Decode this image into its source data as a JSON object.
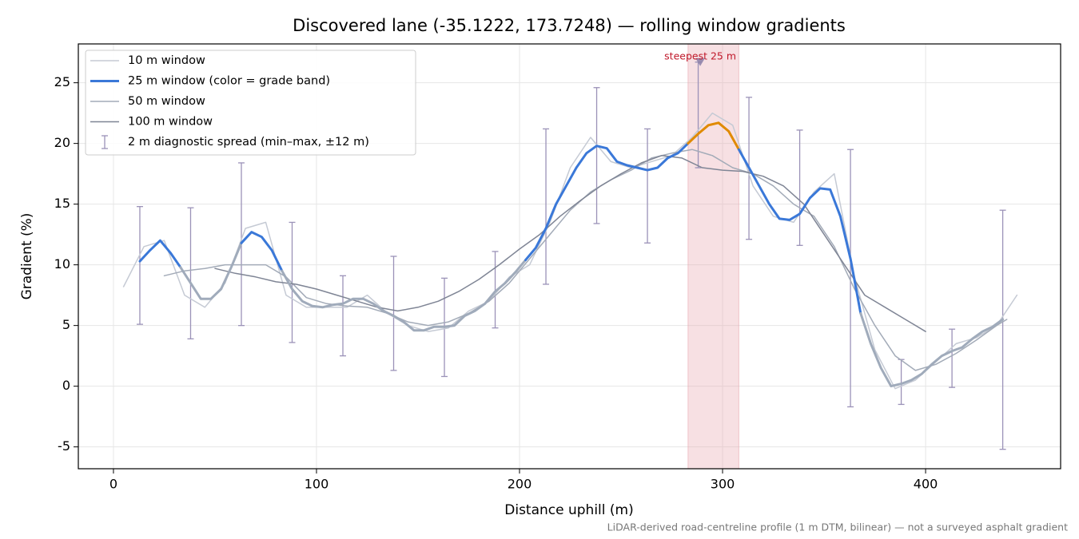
{
  "chart_data": {
    "type": "line",
    "title": "Discovered lane (-35.1222, 173.7248) — rolling window gradients",
    "xlabel": "Distance uphill (m)",
    "ylabel": "Gradient (%)",
    "note": "LiDAR-derived road-centreline profile (1 m DTM, bilinear) — not a surveyed asphalt gradient",
    "xlim": [
      -17.3,
      466.5
    ],
    "ylim": [
      -6.8,
      28.2
    ],
    "xticks": [
      0,
      100,
      200,
      300,
      400
    ],
    "yticks": [
      -5,
      0,
      5,
      10,
      15,
      20,
      25
    ],
    "grid": true,
    "legend": "upper left",
    "series": [
      {
        "name": "10 m window",
        "color": "#c5cad4",
        "width": 1.5,
        "x": [
          5,
          15,
          25,
          35,
          45,
          55,
          65,
          75,
          85,
          95,
          105,
          115,
          125,
          135,
          145,
          155,
          165,
          175,
          185,
          195,
          205,
          215,
          225,
          235,
          245,
          255,
          265,
          275,
          285,
          295,
          305,
          315,
          325,
          335,
          345,
          355,
          365,
          375,
          385,
          395,
          405,
          415,
          425,
          435,
          445
        ],
        "values": [
          8.2,
          11.5,
          12.0,
          7.5,
          6.5,
          8.5,
          13.0,
          13.5,
          7.5,
          6.5,
          6.5,
          6.5,
          7.5,
          6.0,
          5.0,
          4.5,
          4.8,
          6.2,
          7.0,
          9.0,
          10.0,
          13.5,
          18.0,
          20.5,
          18.5,
          18.0,
          18.5,
          19.0,
          20.5,
          22.5,
          21.5,
          16.5,
          14.0,
          13.5,
          16.0,
          17.5,
          9.0,
          3.0,
          -0.2,
          0.5,
          2.0,
          3.5,
          4.0,
          5.0,
          7.5
        ]
      },
      {
        "name": "25 m window (color = grade band)",
        "color": "#3a78d8",
        "width": 3,
        "band_edges": [
          10,
          20
        ],
        "band_colors": [
          "#a0abbb",
          "#3a78d8",
          "#e08a00"
        ],
        "x": [
          13,
          18,
          23,
          28,
          33,
          38,
          43,
          48,
          53,
          58,
          63,
          68,
          73,
          78,
          83,
          88,
          93,
          98,
          103,
          108,
          113,
          118,
          123,
          128,
          133,
          138,
          143,
          148,
          153,
          158,
          163,
          168,
          173,
          178,
          183,
          188,
          193,
          198,
          203,
          208,
          213,
          218,
          223,
          228,
          233,
          238,
          243,
          248,
          253,
          258,
          263,
          268,
          273,
          278,
          283,
          288,
          293,
          298,
          303,
          308,
          313,
          318,
          323,
          328,
          333,
          338,
          343,
          348,
          353,
          358,
          363,
          368,
          373,
          378,
          383,
          388,
          393,
          398,
          403,
          408,
          413,
          418,
          423,
          428,
          433,
          438
        ],
        "values": [
          10.3,
          11.2,
          12.0,
          11.0,
          9.8,
          8.5,
          7.2,
          7.2,
          8.0,
          9.8,
          11.8,
          12.7,
          12.3,
          11.2,
          9.5,
          8.0,
          7.0,
          6.6,
          6.5,
          6.7,
          6.8,
          7.2,
          7.2,
          6.8,
          6.2,
          5.8,
          5.3,
          4.6,
          4.6,
          4.9,
          4.9,
          5.0,
          5.8,
          6.2,
          6.8,
          7.8,
          8.5,
          9.4,
          10.4,
          11.4,
          13.0,
          15.0,
          16.5,
          18.0,
          19.2,
          19.8,
          19.6,
          18.5,
          18.2,
          18.0,
          17.8,
          18.0,
          18.8,
          19.2,
          20.0,
          20.8,
          21.5,
          21.7,
          21.0,
          19.5,
          18.0,
          16.5,
          15.0,
          13.8,
          13.7,
          14.2,
          15.5,
          16.3,
          16.2,
          14.0,
          10.5,
          6.0,
          3.5,
          1.5,
          0.0,
          0.2,
          0.5,
          1.0,
          1.8,
          2.5,
          2.9,
          3.2,
          3.9,
          4.5,
          4.9,
          5.5
        ]
      },
      {
        "name": "50 m window",
        "color": "#a3abb8",
        "width": 1.5,
        "x": [
          25,
          35,
          45,
          55,
          65,
          75,
          85,
          95,
          105,
          115,
          125,
          135,
          145,
          155,
          165,
          175,
          185,
          195,
          205,
          215,
          225,
          235,
          245,
          255,
          265,
          275,
          285,
          295,
          305,
          315,
          325,
          335,
          345,
          355,
          365,
          375,
          385,
          395,
          405,
          415,
          425,
          435,
          440
        ],
        "values": [
          9.1,
          9.5,
          9.7,
          10.0,
          10.0,
          10.0,
          9.0,
          7.3,
          6.8,
          6.6,
          6.5,
          6.0,
          5.3,
          5.0,
          5.3,
          6.0,
          7.0,
          8.5,
          10.5,
          12.5,
          14.5,
          16.0,
          17.0,
          17.8,
          18.8,
          19.2,
          19.5,
          19.0,
          18.0,
          17.5,
          16.5,
          15.0,
          14.0,
          11.5,
          8.0,
          5.0,
          2.5,
          1.3,
          1.8,
          2.7,
          3.8,
          5.0,
          5.5
        ]
      },
      {
        "name": "100 m window",
        "color": "#7f8595",
        "width": 1.5,
        "x": [
          50,
          60,
          70,
          80,
          90,
          100,
          110,
          120,
          130,
          140,
          150,
          160,
          170,
          180,
          190,
          200,
          210,
          220,
          230,
          240,
          250,
          260,
          270,
          280,
          290,
          300,
          310,
          320,
          330,
          340,
          350,
          360,
          370,
          380,
          390,
          400
        ],
        "values": [
          9.7,
          9.3,
          9.0,
          8.6,
          8.4,
          8.0,
          7.5,
          7.0,
          6.5,
          6.2,
          6.5,
          7.0,
          7.8,
          8.8,
          10.0,
          11.3,
          12.5,
          14.0,
          15.3,
          16.5,
          17.5,
          18.4,
          19.0,
          18.8,
          18.0,
          17.8,
          17.7,
          17.3,
          16.5,
          15.0,
          12.5,
          10.0,
          7.5,
          6.5,
          5.5,
          4.5
        ]
      }
    ],
    "errorbars": {
      "name": "2 m diagnostic spread (min–max, ±12 m)",
      "color": "#9b92b8",
      "x": [
        13,
        38,
        63,
        88,
        113,
        138,
        163,
        188,
        213,
        238,
        263,
        288,
        313,
        338,
        363,
        388,
        413,
        438
      ],
      "low": [
        5.1,
        3.9,
        5.0,
        3.6,
        2.5,
        1.3,
        0.8,
        4.8,
        8.4,
        13.4,
        11.8,
        18.0,
        12.1,
        11.6,
        -1.7,
        -1.5,
        -0.1,
        -5.2
      ],
      "high": [
        14.8,
        14.7,
        18.4,
        13.5,
        9.1,
        10.7,
        8.9,
        11.1,
        21.2,
        24.6,
        21.2,
        26.7,
        23.8,
        21.1,
        19.5,
        2.2,
        4.7,
        14.5
      ]
    },
    "annotation": {
      "text": "steepest 25 m",
      "x": 289,
      "y": 26.7,
      "span": [
        283,
        308
      ],
      "color": "#c0182a",
      "span_color": "#e8a7ae"
    }
  }
}
